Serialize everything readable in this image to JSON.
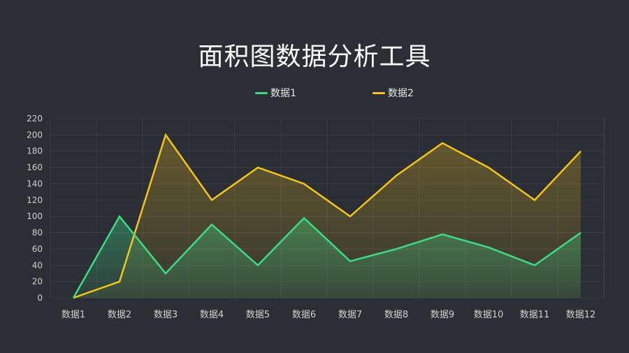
{
  "page": {
    "title": "面积图数据分析工具"
  },
  "colors": {
    "background": "#2b2e34",
    "grid": "#3a3e45",
    "series1": "#3ddc84",
    "series2": "#f5c518"
  },
  "chart_data": {
    "type": "area",
    "title": "面积图数据分析工具",
    "categories": [
      "数据1",
      "数据2",
      "数据3",
      "数据4",
      "数据5",
      "数据6",
      "数据7",
      "数据8",
      "数据9",
      "数据10",
      "数据11",
      "数据12"
    ],
    "series": [
      {
        "name": "数据1",
        "color": "#3ddc84",
        "values": [
          0,
          100,
          30,
          90,
          40,
          98,
          45,
          60,
          78,
          62,
          40,
          80
        ]
      },
      {
        "name": "数据2",
        "color": "#f5c518",
        "values": [
          0,
          20,
          200,
          120,
          160,
          140,
          100,
          150,
          190,
          160,
          120,
          180
        ]
      }
    ],
    "ylim": [
      0,
      220
    ],
    "yticks": [
      "0",
      "20",
      "40",
      "60",
      "80",
      "100",
      "120",
      "140",
      "160",
      "180",
      "200",
      "220"
    ],
    "grid": true,
    "legend": "top"
  }
}
